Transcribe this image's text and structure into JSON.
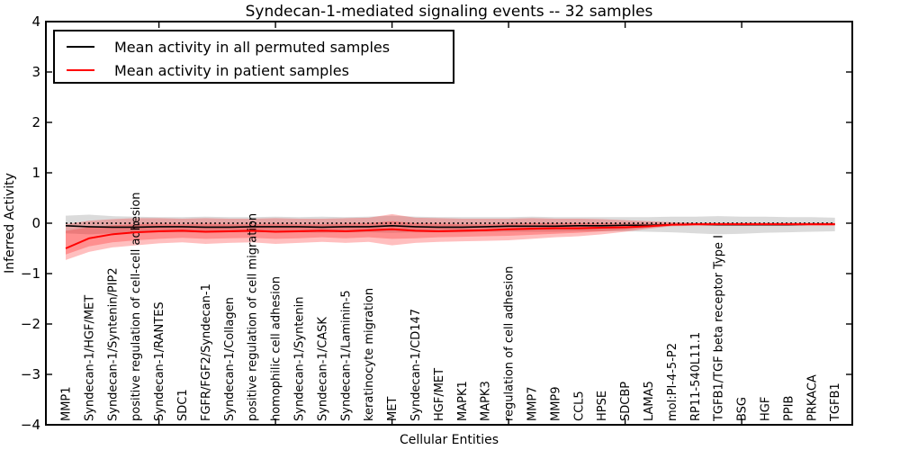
{
  "figure": {
    "title": "Syndecan-1-mediated signaling events -- 32 samples"
  },
  "legend": {
    "items": [
      {
        "label": "Mean activity in all permuted samples",
        "color": "#000000"
      },
      {
        "label": "Mean activity in patient samples",
        "color": "#ff0000"
      }
    ]
  },
  "chart_data": {
    "type": "line",
    "title": "Syndecan-1-mediated signaling events -- 32 samples",
    "xlabel": "Cellular Entities",
    "ylabel": "Inferred Activity",
    "ylim": [
      -4,
      4
    ],
    "yticks": [
      4,
      3,
      2,
      1,
      0,
      -1,
      -2,
      -3,
      -4
    ],
    "grid": false,
    "legend_position": "upper left",
    "categories": [
      "MMP1",
      "Syndecan-1/HGF/MET",
      "Syndecan-1/Syntenin/PIP2",
      "positive regulation of cell-cell adhesion",
      "Syndecan-1/RANTES",
      "SDC1",
      "FGFR/FGF2/Syndecan-1",
      "Syndecan-1/Collagen",
      "positive regulation of cell migration",
      "homophilic cell adhesion",
      "Syndecan-1/Syntenin",
      "Syndecan-1/CASK",
      "Syndecan-1/Laminin-5",
      "keratinocyte migration",
      "MET",
      "Syndecan-1/CD147",
      "HGF/MET",
      "MAPK1",
      "MAPK3",
      "regulation of cell adhesion",
      "MMP7",
      "MMP9",
      "CCL5",
      "HPSE",
      "SDCBP",
      "LAMA5",
      "mol:PI-4-5-P2",
      "RP11-540L11.1",
      "TGFB1/TGF beta receptor Type I",
      "BSG",
      "HGF",
      "PPIB",
      "PRKACA",
      "TGFB1"
    ],
    "threshold_line": {
      "value": 0,
      "style": "dotted",
      "color": "#000000"
    },
    "series": [
      {
        "id": "permuted-mean",
        "name": "Mean activity in all permuted samples",
        "color": "#000000",
        "values": [
          -0.05,
          -0.07,
          -0.08,
          -0.08,
          -0.07,
          -0.07,
          -0.08,
          -0.08,
          -0.07,
          -0.07,
          -0.07,
          -0.08,
          -0.07,
          -0.07,
          -0.05,
          -0.07,
          -0.08,
          -0.08,
          -0.07,
          -0.06,
          -0.06,
          -0.06,
          -0.05,
          -0.05,
          -0.04,
          -0.04,
          -0.03,
          -0.02,
          -0.03,
          -0.03,
          -0.03,
          -0.03,
          -0.02,
          -0.02
        ]
      },
      {
        "id": "patient-mean",
        "name": "Mean activity in patient samples",
        "color": "#ff0000",
        "values": [
          -0.5,
          -0.3,
          -0.22,
          -0.18,
          -0.16,
          -0.15,
          -0.17,
          -0.16,
          -0.15,
          -0.17,
          -0.16,
          -0.15,
          -0.16,
          -0.14,
          -0.12,
          -0.15,
          -0.16,
          -0.15,
          -0.14,
          -0.12,
          -0.11,
          -0.1,
          -0.1,
          -0.09,
          -0.08,
          -0.06,
          -0.03,
          -0.02,
          -0.02,
          -0.02,
          -0.02,
          -0.02,
          -0.02,
          -0.02
        ]
      }
    ],
    "bands": [
      {
        "id": "permuted-range",
        "color": "#999999",
        "opacity": 0.35,
        "upper": [
          0.15,
          0.17,
          0.14,
          0.13,
          0.12,
          0.12,
          0.13,
          0.12,
          0.12,
          0.13,
          0.12,
          0.13,
          0.12,
          0.13,
          0.15,
          0.13,
          0.12,
          0.12,
          0.12,
          0.12,
          0.13,
          0.12,
          0.12,
          0.12,
          0.12,
          0.12,
          0.13,
          0.13,
          0.14,
          0.13,
          0.13,
          0.12,
          0.12,
          0.11
        ],
        "lower": [
          -0.2,
          -0.22,
          -0.2,
          -0.19,
          -0.18,
          -0.18,
          -0.19,
          -0.18,
          -0.18,
          -0.18,
          -0.18,
          -0.19,
          -0.18,
          -0.18,
          -0.19,
          -0.18,
          -0.18,
          -0.18,
          -0.17,
          -0.17,
          -0.17,
          -0.17,
          -0.16,
          -0.16,
          -0.16,
          -0.17,
          -0.18,
          -0.2,
          -0.22,
          -0.21,
          -0.19,
          -0.18,
          -0.17,
          -0.16
        ]
      },
      {
        "id": "patient-range-outer",
        "color": "#ff0000",
        "opacity": 0.25,
        "upper": [
          -0.02,
          0.05,
          0.08,
          0.1,
          0.1,
          0.09,
          0.1,
          0.09,
          0.09,
          0.1,
          0.09,
          0.09,
          0.1,
          0.11,
          0.18,
          0.11,
          0.1,
          0.09,
          0.09,
          0.09,
          0.1,
          0.09,
          0.09,
          0.08,
          0.06,
          0.04,
          0.02,
          0.01,
          0.01,
          0.01,
          0.01,
          0.01,
          0.01,
          0.01
        ],
        "lower": [
          -0.73,
          -0.57,
          -0.48,
          -0.44,
          -0.4,
          -0.38,
          -0.41,
          -0.39,
          -0.38,
          -0.41,
          -0.39,
          -0.37,
          -0.39,
          -0.37,
          -0.44,
          -0.39,
          -0.37,
          -0.36,
          -0.35,
          -0.34,
          -0.31,
          -0.28,
          -0.26,
          -0.22,
          -0.17,
          -0.11,
          -0.06,
          -0.05,
          -0.05,
          -0.05,
          -0.05,
          -0.05,
          -0.05,
          -0.05
        ]
      },
      {
        "id": "patient-range-inner",
        "color": "#ff0000",
        "opacity": 0.25,
        "upper": [
          -0.15,
          -0.08,
          -0.04,
          -0.02,
          -0.01,
          -0.02,
          -0.01,
          -0.02,
          -0.02,
          -0.01,
          -0.02,
          -0.02,
          -0.01,
          0.0,
          0.04,
          0.0,
          -0.01,
          -0.02,
          -0.02,
          -0.01,
          0.0,
          0.0,
          0.0,
          0.0,
          -0.01,
          -0.01,
          -0.01,
          -0.01,
          -0.01,
          -0.01,
          -0.01,
          -0.01,
          -0.01,
          -0.01
        ],
        "lower": [
          -0.62,
          -0.46,
          -0.38,
          -0.34,
          -0.31,
          -0.29,
          -0.31,
          -0.3,
          -0.29,
          -0.31,
          -0.3,
          -0.28,
          -0.3,
          -0.28,
          -0.31,
          -0.3,
          -0.28,
          -0.27,
          -0.26,
          -0.25,
          -0.23,
          -0.21,
          -0.19,
          -0.16,
          -0.13,
          -0.09,
          -0.05,
          -0.04,
          -0.04,
          -0.04,
          -0.04,
          -0.04,
          -0.04,
          -0.04
        ]
      }
    ]
  }
}
